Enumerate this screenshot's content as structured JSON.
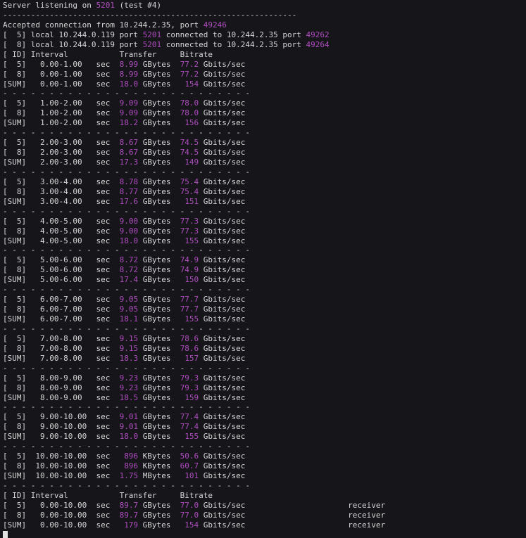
{
  "terminal": {
    "colors": {
      "background": "#16161a",
      "foreground": "#d6d6d6",
      "accent_magenta": "#ae4cbe",
      "cursor": "#e2e2e2"
    },
    "lines": [
      {
        "segs": [
          [
            "Server listening on "
          ],
          [
            "5201",
            "m"
          ],
          [
            " (test #4)"
          ]
        ]
      },
      {
        "segs": [
          [
            "---------------------------------------------------------------"
          ]
        ]
      },
      {
        "segs": [
          [
            "Accepted connection from 10.244.2.35, port "
          ],
          [
            "49246",
            "m"
          ]
        ]
      },
      {
        "segs": [
          [
            "[  5] local 10.244.0.119 port "
          ],
          [
            "5201",
            "m"
          ],
          [
            " connected to 10.244.2.35 port "
          ],
          [
            "49262",
            "m"
          ]
        ]
      },
      {
        "segs": [
          [
            "[  8] local 10.244.0.119 port "
          ],
          [
            "5201",
            "m"
          ],
          [
            " connected to 10.244.2.35 port "
          ],
          [
            "49264",
            "m"
          ]
        ]
      },
      {
        "segs": [
          [
            "[ ID] Interval           Transfer     Bitrate"
          ]
        ]
      },
      {
        "segs": [
          [
            "[  5]   0.00-1.00   sec  "
          ],
          [
            "8.99",
            "m"
          ],
          [
            " GBytes  "
          ],
          [
            "77.2",
            "m"
          ],
          [
            " Gbits/sec"
          ]
        ]
      },
      {
        "segs": [
          [
            "[  8]   0.00-1.00   sec  "
          ],
          [
            "8.99",
            "m"
          ],
          [
            " GBytes  "
          ],
          [
            "77.2",
            "m"
          ],
          [
            " Gbits/sec"
          ]
        ]
      },
      {
        "segs": [
          [
            "[SUM]   0.00-1.00   sec  "
          ],
          [
            "18.0",
            "m"
          ],
          [
            " GBytes   "
          ],
          [
            "154",
            "m"
          ],
          [
            " Gbits/sec"
          ]
        ]
      },
      {
        "segs": [
          [
            "- - - - - - - - - - - - - - - - - - - - - - - - - - -"
          ]
        ]
      },
      {
        "segs": [
          [
            "[  5]   1.00-2.00   sec  "
          ],
          [
            "9.09",
            "m"
          ],
          [
            " GBytes  "
          ],
          [
            "78.0",
            "m"
          ],
          [
            " Gbits/sec"
          ]
        ]
      },
      {
        "segs": [
          [
            "[  8]   1.00-2.00   sec  "
          ],
          [
            "9.09",
            "m"
          ],
          [
            " GBytes  "
          ],
          [
            "78.0",
            "m"
          ],
          [
            " Gbits/sec"
          ]
        ]
      },
      {
        "segs": [
          [
            "[SUM]   1.00-2.00   sec  "
          ],
          [
            "18.2",
            "m"
          ],
          [
            " GBytes   "
          ],
          [
            "156",
            "m"
          ],
          [
            " Gbits/sec"
          ]
        ]
      },
      {
        "segs": [
          [
            "- - - - - - - - - - - - - - - - - - - - - - - - - - -"
          ]
        ]
      },
      {
        "segs": [
          [
            "[  5]   2.00-3.00   sec  "
          ],
          [
            "8.67",
            "m"
          ],
          [
            " GBytes  "
          ],
          [
            "74.5",
            "m"
          ],
          [
            " Gbits/sec"
          ]
        ]
      },
      {
        "segs": [
          [
            "[  8]   2.00-3.00   sec  "
          ],
          [
            "8.67",
            "m"
          ],
          [
            " GBytes  "
          ],
          [
            "74.5",
            "m"
          ],
          [
            " Gbits/sec"
          ]
        ]
      },
      {
        "segs": [
          [
            "[SUM]   2.00-3.00   sec  "
          ],
          [
            "17.3",
            "m"
          ],
          [
            " GBytes   "
          ],
          [
            "149",
            "m"
          ],
          [
            " Gbits/sec"
          ]
        ]
      },
      {
        "segs": [
          [
            "- - - - - - - - - - - - - - - - - - - - - - - - - - -"
          ]
        ]
      },
      {
        "segs": [
          [
            "[  5]   3.00-4.00   sec  "
          ],
          [
            "8.78",
            "m"
          ],
          [
            " GBytes  "
          ],
          [
            "75.4",
            "m"
          ],
          [
            " Gbits/sec"
          ]
        ]
      },
      {
        "segs": [
          [
            "[  8]   3.00-4.00   sec  "
          ],
          [
            "8.77",
            "m"
          ],
          [
            " GBytes  "
          ],
          [
            "75.4",
            "m"
          ],
          [
            " Gbits/sec"
          ]
        ]
      },
      {
        "segs": [
          [
            "[SUM]   3.00-4.00   sec  "
          ],
          [
            "17.6",
            "m"
          ],
          [
            " GBytes   "
          ],
          [
            "151",
            "m"
          ],
          [
            " Gbits/sec"
          ]
        ]
      },
      {
        "segs": [
          [
            "- - - - - - - - - - - - - - - - - - - - - - - - - - -"
          ]
        ]
      },
      {
        "segs": [
          [
            "[  5]   4.00-5.00   sec  "
          ],
          [
            "9.00",
            "m"
          ],
          [
            " GBytes  "
          ],
          [
            "77.3",
            "m"
          ],
          [
            " Gbits/sec"
          ]
        ]
      },
      {
        "segs": [
          [
            "[  8]   4.00-5.00   sec  "
          ],
          [
            "9.00",
            "m"
          ],
          [
            " GBytes  "
          ],
          [
            "77.3",
            "m"
          ],
          [
            " Gbits/sec"
          ]
        ]
      },
      {
        "segs": [
          [
            "[SUM]   4.00-5.00   sec  "
          ],
          [
            "18.0",
            "m"
          ],
          [
            " GBytes   "
          ],
          [
            "155",
            "m"
          ],
          [
            " Gbits/sec"
          ]
        ]
      },
      {
        "segs": [
          [
            "- - - - - - - - - - - - - - - - - - - - - - - - - - -"
          ]
        ]
      },
      {
        "segs": [
          [
            "[  5]   5.00-6.00   sec  "
          ],
          [
            "8.72",
            "m"
          ],
          [
            " GBytes  "
          ],
          [
            "74.9",
            "m"
          ],
          [
            " Gbits/sec"
          ]
        ]
      },
      {
        "segs": [
          [
            "[  8]   5.00-6.00   sec  "
          ],
          [
            "8.72",
            "m"
          ],
          [
            " GBytes  "
          ],
          [
            "74.9",
            "m"
          ],
          [
            " Gbits/sec"
          ]
        ]
      },
      {
        "segs": [
          [
            "[SUM]   5.00-6.00   sec  "
          ],
          [
            "17.4",
            "m"
          ],
          [
            " GBytes   "
          ],
          [
            "150",
            "m"
          ],
          [
            " Gbits/sec"
          ]
        ]
      },
      {
        "segs": [
          [
            "- - - - - - - - - - - - - - - - - - - - - - - - - - -"
          ]
        ]
      },
      {
        "segs": [
          [
            "[  5]   6.00-7.00   sec  "
          ],
          [
            "9.05",
            "m"
          ],
          [
            " GBytes  "
          ],
          [
            "77.7",
            "m"
          ],
          [
            " Gbits/sec"
          ]
        ]
      },
      {
        "segs": [
          [
            "[  8]   6.00-7.00   sec  "
          ],
          [
            "9.05",
            "m"
          ],
          [
            " GBytes  "
          ],
          [
            "77.7",
            "m"
          ],
          [
            " Gbits/sec"
          ]
        ]
      },
      {
        "segs": [
          [
            "[SUM]   6.00-7.00   sec  "
          ],
          [
            "18.1",
            "m"
          ],
          [
            " GBytes   "
          ],
          [
            "155",
            "m"
          ],
          [
            " Gbits/sec"
          ]
        ]
      },
      {
        "segs": [
          [
            "- - - - - - - - - - - - - - - - - - - - - - - - - - -"
          ]
        ]
      },
      {
        "segs": [
          [
            "[  5]   7.00-8.00   sec  "
          ],
          [
            "9.15",
            "m"
          ],
          [
            " GBytes  "
          ],
          [
            "78.6",
            "m"
          ],
          [
            " Gbits/sec"
          ]
        ]
      },
      {
        "segs": [
          [
            "[  8]   7.00-8.00   sec  "
          ],
          [
            "9.15",
            "m"
          ],
          [
            " GBytes  "
          ],
          [
            "78.6",
            "m"
          ],
          [
            " Gbits/sec"
          ]
        ]
      },
      {
        "segs": [
          [
            "[SUM]   7.00-8.00   sec  "
          ],
          [
            "18.3",
            "m"
          ],
          [
            " GBytes   "
          ],
          [
            "157",
            "m"
          ],
          [
            " Gbits/sec"
          ]
        ]
      },
      {
        "segs": [
          [
            "- - - - - - - - - - - - - - - - - - - - - - - - - - -"
          ]
        ]
      },
      {
        "segs": [
          [
            "[  5]   8.00-9.00   sec  "
          ],
          [
            "9.23",
            "m"
          ],
          [
            " GBytes  "
          ],
          [
            "79.3",
            "m"
          ],
          [
            " Gbits/sec"
          ]
        ]
      },
      {
        "segs": [
          [
            "[  8]   8.00-9.00   sec  "
          ],
          [
            "9.23",
            "m"
          ],
          [
            " GBytes  "
          ],
          [
            "79.3",
            "m"
          ],
          [
            " Gbits/sec"
          ]
        ]
      },
      {
        "segs": [
          [
            "[SUM]   8.00-9.00   sec  "
          ],
          [
            "18.5",
            "m"
          ],
          [
            " GBytes   "
          ],
          [
            "159",
            "m"
          ],
          [
            " Gbits/sec"
          ]
        ]
      },
      {
        "segs": [
          [
            "- - - - - - - - - - - - - - - - - - - - - - - - - - -"
          ]
        ]
      },
      {
        "segs": [
          [
            "[  5]   9.00-10.00  sec  "
          ],
          [
            "9.01",
            "m"
          ],
          [
            " GBytes  "
          ],
          [
            "77.4",
            "m"
          ],
          [
            " Gbits/sec"
          ]
        ]
      },
      {
        "segs": [
          [
            "[  8]   9.00-10.00  sec  "
          ],
          [
            "9.01",
            "m"
          ],
          [
            " GBytes  "
          ],
          [
            "77.4",
            "m"
          ],
          [
            " Gbits/sec"
          ]
        ]
      },
      {
        "segs": [
          [
            "[SUM]   9.00-10.00  sec  "
          ],
          [
            "18.0",
            "m"
          ],
          [
            " GBytes   "
          ],
          [
            "155",
            "m"
          ],
          [
            " Gbits/sec"
          ]
        ]
      },
      {
        "segs": [
          [
            "- - - - - - - - - - - - - - - - - - - - - - - - - - -"
          ]
        ]
      },
      {
        "segs": [
          [
            "[  5]  10.00-10.00  sec   "
          ],
          [
            "896",
            "m"
          ],
          [
            " KBytes  "
          ],
          [
            "50.6",
            "m"
          ],
          [
            " Gbits/sec"
          ]
        ]
      },
      {
        "segs": [
          [
            "[  8]  10.00-10.00  sec   "
          ],
          [
            "896",
            "m"
          ],
          [
            " KBytes  "
          ],
          [
            "60.7",
            "m"
          ],
          [
            " Gbits/sec"
          ]
        ]
      },
      {
        "segs": [
          [
            "[SUM]  10.00-10.00  sec  "
          ],
          [
            "1.75",
            "m"
          ],
          [
            " MBytes   "
          ],
          [
            "101",
            "m"
          ],
          [
            " Gbits/sec"
          ]
        ]
      },
      {
        "segs": [
          [
            "- - - - - - - - - - - - - - - - - - - - - - - - - - -"
          ]
        ]
      },
      {
        "segs": [
          [
            "[ ID] Interval           Transfer     Bitrate"
          ]
        ]
      },
      {
        "segs": [
          [
            "[  5]   0.00-10.00  sec  "
          ],
          [
            "89.7",
            "m"
          ],
          [
            " GBytes  "
          ],
          [
            "77.0",
            "m"
          ],
          [
            " Gbits/sec                      receiver"
          ]
        ]
      },
      {
        "segs": [
          [
            "[  8]   0.00-10.00  sec  "
          ],
          [
            "89.7",
            "m"
          ],
          [
            " GBytes  "
          ],
          [
            "77.0",
            "m"
          ],
          [
            " Gbits/sec                      receiver"
          ]
        ]
      },
      {
        "segs": [
          [
            "[SUM]   0.00-10.00  sec   "
          ],
          [
            "179",
            "m"
          ],
          [
            " GBytes   "
          ],
          [
            "154",
            "m"
          ],
          [
            " Gbits/sec                      receiver"
          ]
        ]
      },
      {
        "cursor": true
      }
    ]
  }
}
